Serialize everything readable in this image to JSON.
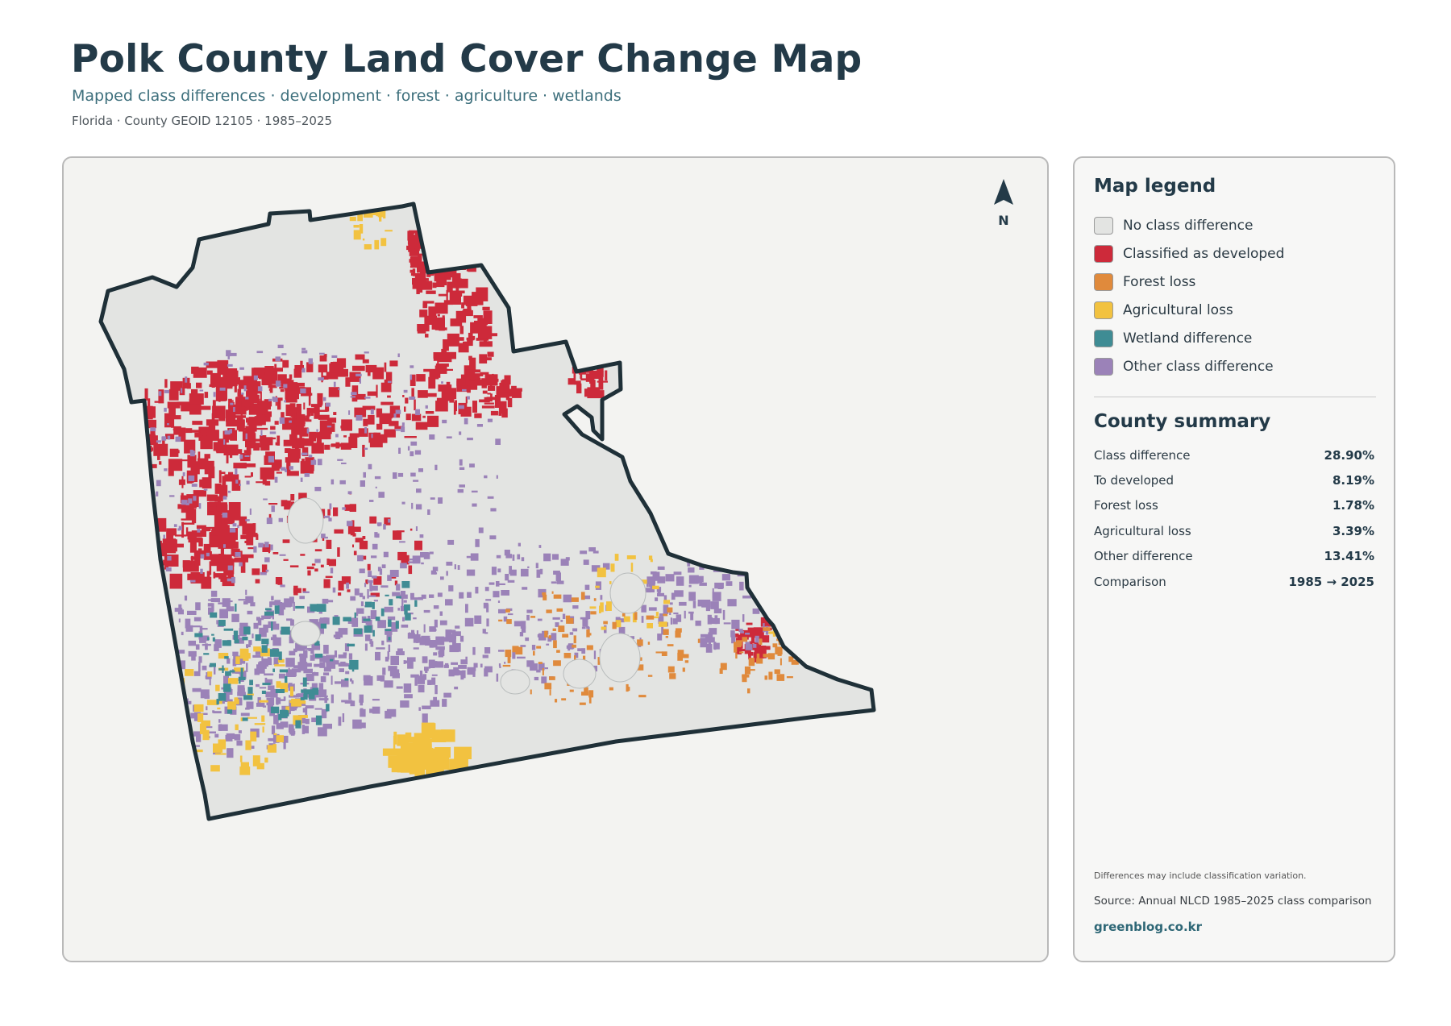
{
  "header": {
    "title": "Polk County Land Cover Change Map",
    "subtitle": "Mapped class differences · development · forest · agriculture · wetlands",
    "caption": "Florida · County GEOID 12105 · 1985–2025"
  },
  "map": {
    "north_label": "N",
    "colors": {
      "no_difference": "#e3e4e2",
      "developed": "#cd2a3a",
      "forest_loss": "#e08a3c",
      "agricultural_loss": "#f2c240",
      "wetland": "#3f8c94",
      "other": "#9b82b8",
      "outline": "#1f3038",
      "panel_bg": "#f3f3f1"
    }
  },
  "legend": {
    "title": "Map legend",
    "items": [
      {
        "label": "No class difference",
        "color": "#e3e4e2"
      },
      {
        "label": "Classified as developed",
        "color": "#cd2a3a"
      },
      {
        "label": "Forest loss",
        "color": "#e08a3c"
      },
      {
        "label": "Agricultural loss",
        "color": "#f2c240"
      },
      {
        "label": "Wetland difference",
        "color": "#3f8c94"
      },
      {
        "label": "Other class difference",
        "color": "#9b82b8"
      }
    ]
  },
  "summary": {
    "title": "County summary",
    "rows": [
      {
        "label": "Class difference",
        "value": "28.90%"
      },
      {
        "label": "To developed",
        "value": "8.19%"
      },
      {
        "label": "Forest loss",
        "value": "1.78%"
      },
      {
        "label": "Agricultural loss",
        "value": "3.39%"
      },
      {
        "label": "Other difference",
        "value": "13.41%"
      },
      {
        "label": "Comparison",
        "value": "1985 → 2025"
      }
    ]
  },
  "footer": {
    "note": "Differences may include classification variation.",
    "source": "Source: Annual NLCD 1985–2025 class comparison",
    "site": "greenblog.co.kr"
  }
}
